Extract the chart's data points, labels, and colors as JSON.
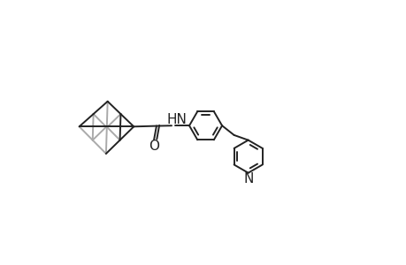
{
  "background_color": "#ffffff",
  "line_color": "#222222",
  "line_width": 1.4,
  "gray_color": "#aaaaaa",
  "figure_width": 4.6,
  "figure_height": 3.0,
  "dpi": 100,
  "font_size": 11,
  "label_HN": "HN",
  "label_O": "O",
  "label_N": "N",
  "xlim": [
    0,
    10
  ],
  "ylim": [
    0,
    6
  ]
}
